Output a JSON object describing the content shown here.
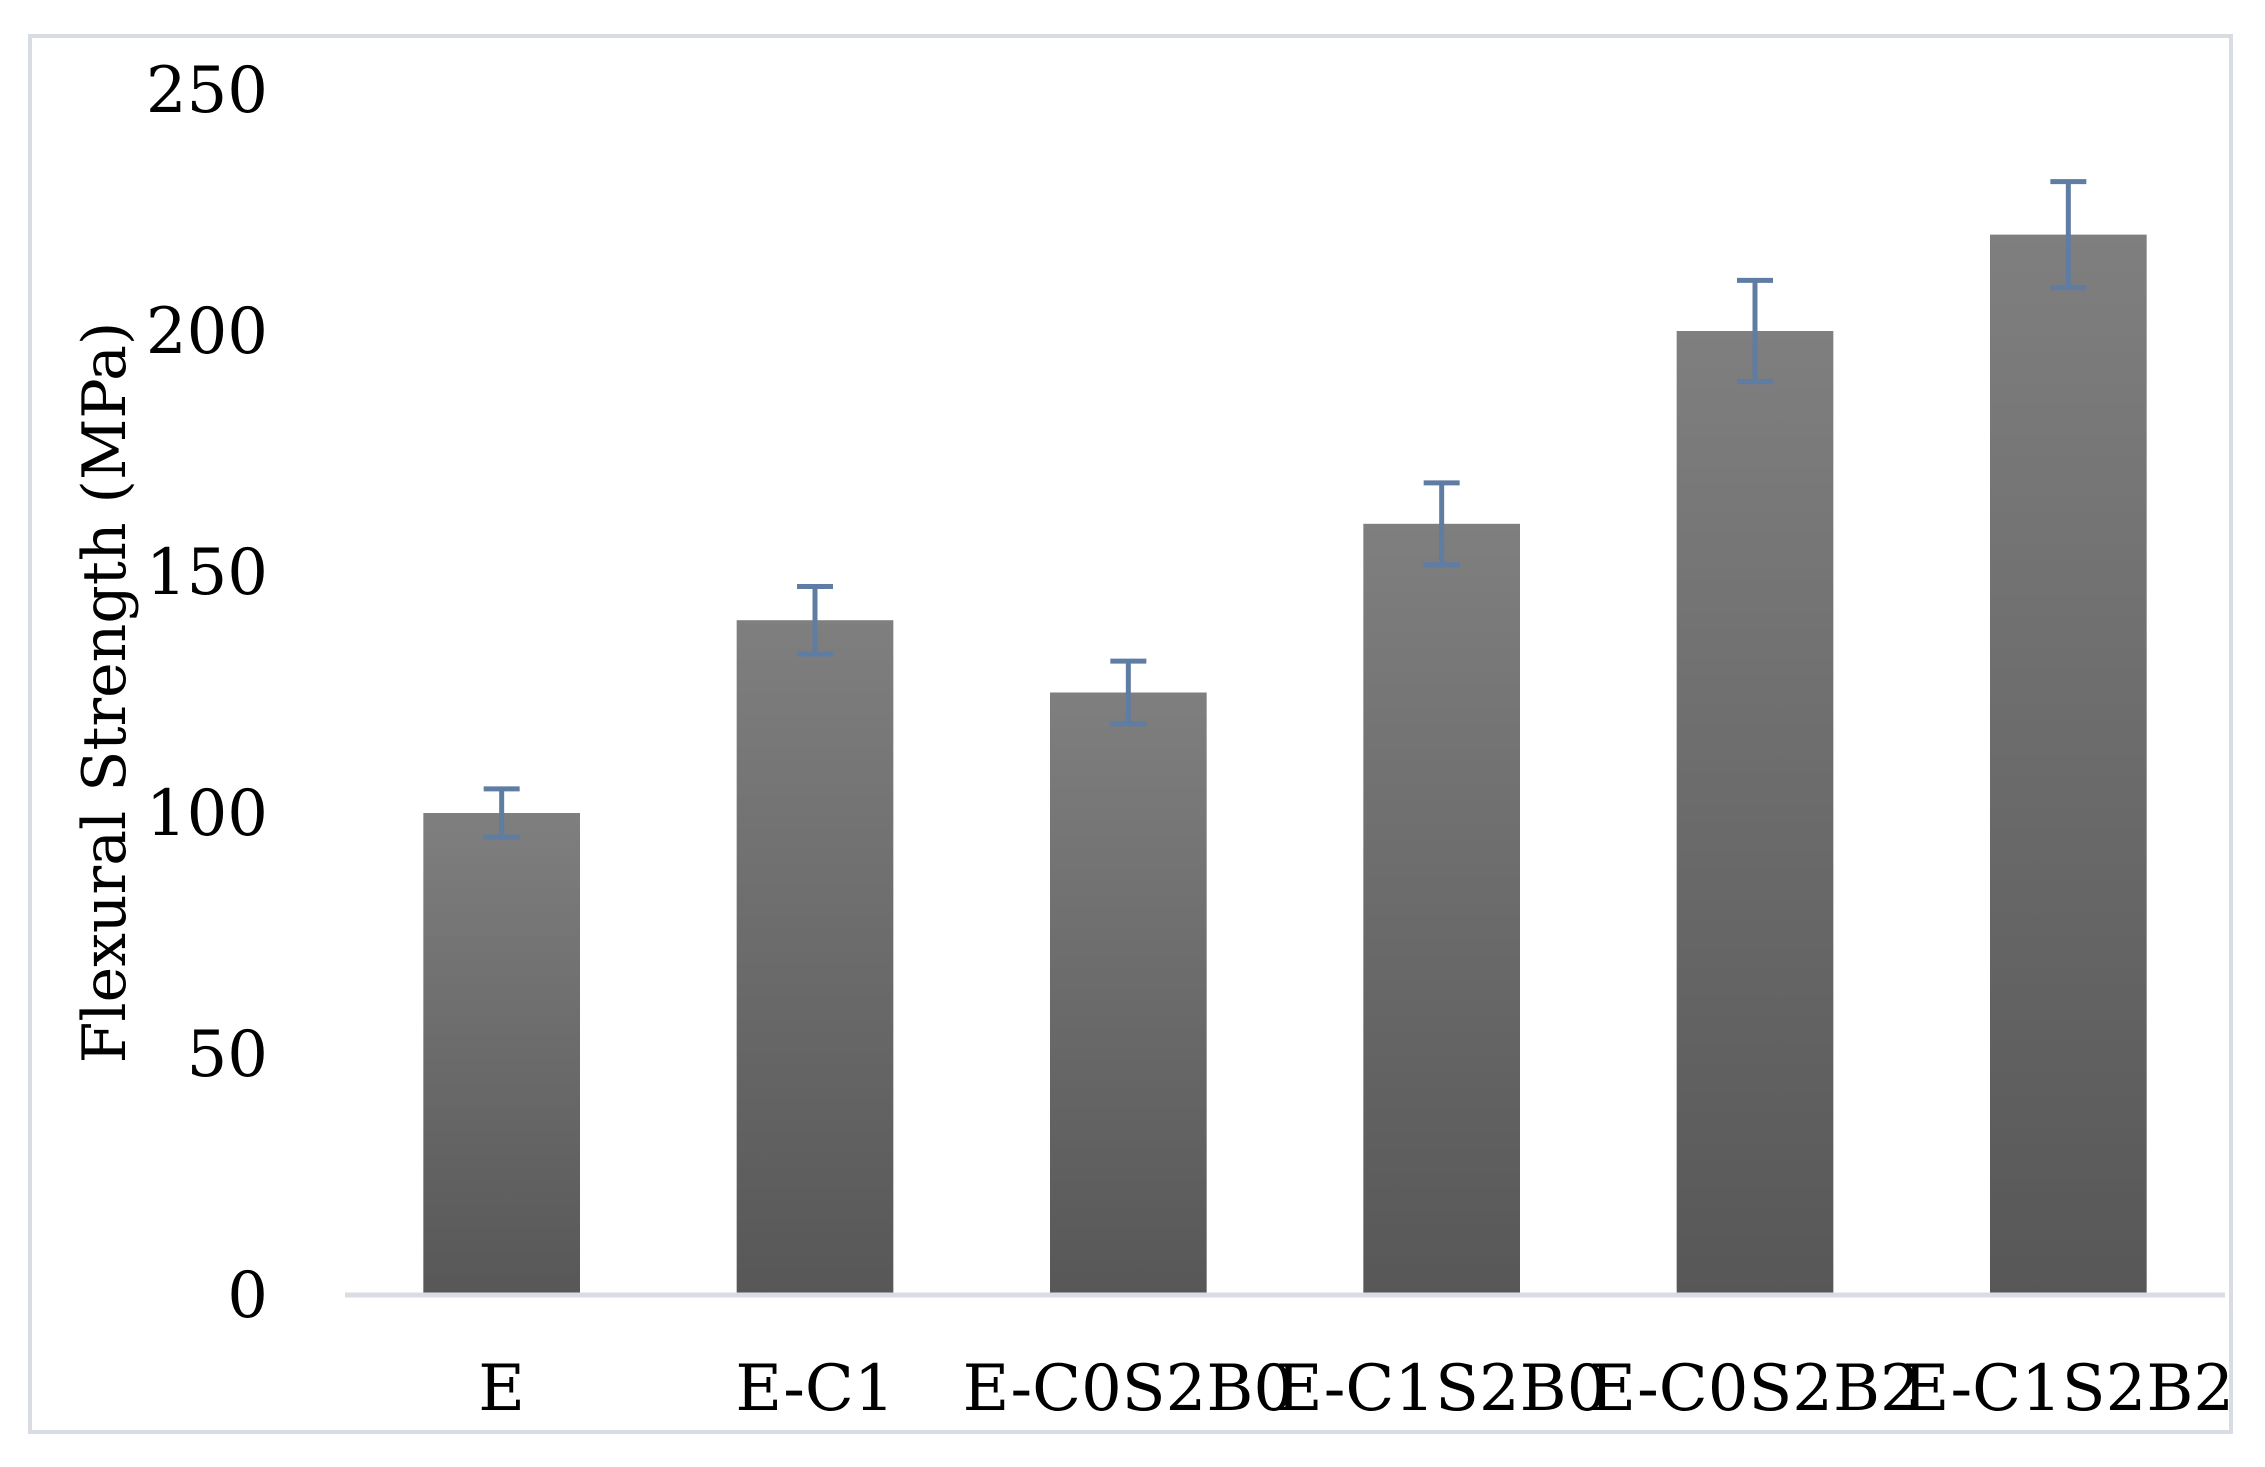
{
  "chart_data": {
    "type": "bar",
    "title": "",
    "xlabel": "",
    "ylabel": "Flexural Strength (MPa)",
    "categories": [
      "E",
      "E-C1",
      "E-C0S2B0",
      "E-C1S2B0",
      "E-C0S2B2",
      "E-C1S2B2"
    ],
    "values": [
      100,
      140,
      125,
      160,
      200,
      220
    ],
    "error": [
      5,
      7,
      6.5,
      8.5,
      10.5,
      11
    ],
    "ylim": [
      0,
      250
    ],
    "yticks": [
      0,
      50,
      100,
      150,
      200,
      250
    ],
    "grid": false,
    "legend": "none",
    "colors": {
      "bar_top": "#7f7f7f",
      "bar_bottom": "#575757",
      "error_bar": "#5f7ca3",
      "axis": "#d9dde3"
    }
  }
}
